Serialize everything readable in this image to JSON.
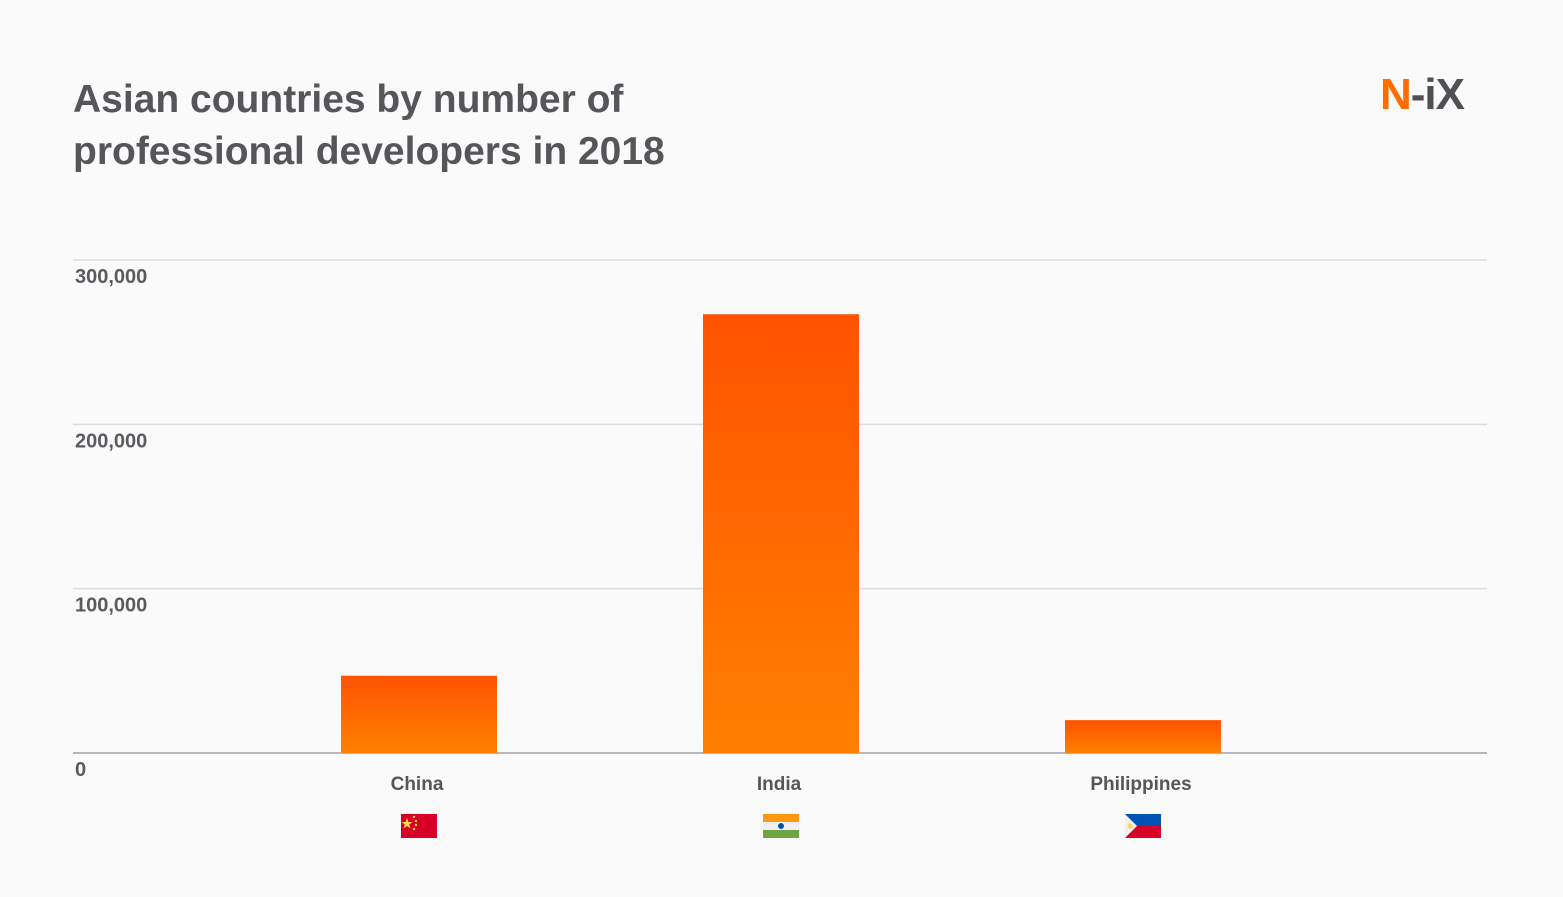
{
  "logo": {
    "accent": "N",
    "rest": "-iX",
    "accent_color": "#ff6d00"
  },
  "chart_data": {
    "type": "bar",
    "title": "Asian countries by number of professional developers in 2018",
    "title_lines": [
      "Asian countries by number of",
      "professional developers in 2018"
    ],
    "categories": [
      "China",
      "India",
      "Philippines"
    ],
    "values": [
      47000,
      267000,
      20000
    ],
    "flags": [
      "china-flag",
      "india-flag",
      "philippines-flag"
    ],
    "xlabel": "",
    "ylabel": "",
    "ylim": [
      0,
      300000
    ],
    "yticks": [
      0,
      100000,
      200000,
      300000
    ],
    "ytick_labels": [
      "0",
      "100,000",
      "200,000",
      "300,000"
    ],
    "grid": true,
    "bar_gradient": [
      "#ff5200",
      "#ff8000"
    ]
  }
}
